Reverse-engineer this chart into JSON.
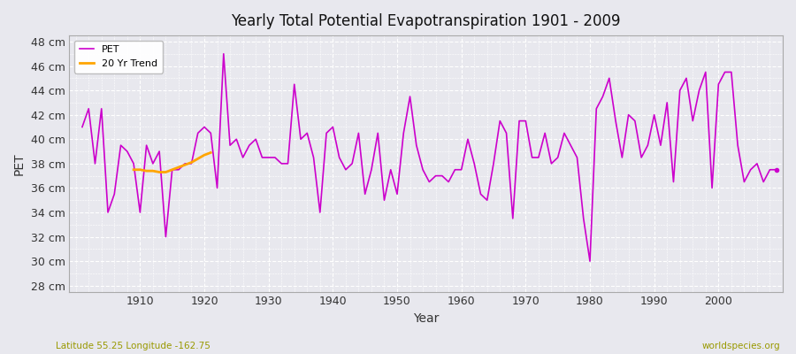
{
  "title": "Yearly Total Potential Evapotranspiration 1901 - 2009",
  "xlabel": "Year",
  "ylabel": "PET",
  "ylim": [
    27.5,
    48.5
  ],
  "ytick_labels": [
    "28 cm",
    "30 cm",
    "32 cm",
    "34 cm",
    "36 cm",
    "38 cm",
    "40 cm",
    "42 cm",
    "44 cm",
    "46 cm",
    "48 cm"
  ],
  "ytick_values": [
    28,
    30,
    32,
    34,
    36,
    38,
    40,
    42,
    44,
    46,
    48
  ],
  "xlim": [
    1899,
    2010
  ],
  "xtick_values": [
    1910,
    1920,
    1930,
    1940,
    1950,
    1960,
    1970,
    1980,
    1990,
    2000
  ],
  "pet_color": "#cc00cc",
  "trend_color": "#ffa500",
  "bg_color": "#e8e8ee",
  "grid_color": "#ffffff",
  "legend_bg": "#ffffff",
  "subtitle_left": "Latitude 55.25 Longitude -162.75",
  "subtitle_right": "worldspecies.org",
  "subtitle_color": "#999900",
  "pet_years": [
    1901,
    1902,
    1903,
    1904,
    1905,
    1906,
    1907,
    1908,
    1909,
    1910,
    1911,
    1912,
    1913,
    1914,
    1915,
    1916,
    1917,
    1918,
    1919,
    1920,
    1921,
    1922,
    1923,
    1924,
    1925,
    1926,
    1927,
    1928,
    1929,
    1930,
    1931,
    1932,
    1933,
    1934,
    1935,
    1936,
    1937,
    1938,
    1939,
    1940,
    1941,
    1942,
    1943,
    1944,
    1945,
    1946,
    1947,
    1948,
    1949,
    1950,
    1951,
    1952,
    1953,
    1954,
    1955,
    1956,
    1957,
    1958,
    1959,
    1960,
    1961,
    1962,
    1963,
    1964,
    1965,
    1966,
    1967,
    1968,
    1969,
    1970,
    1971,
    1972,
    1973,
    1974,
    1975,
    1976,
    1977,
    1978,
    1979,
    1980,
    1981,
    1982,
    1983,
    1984,
    1985,
    1986,
    1987,
    1988,
    1989,
    1990,
    1991,
    1992,
    1993,
    1994,
    1995,
    1996,
    1997,
    1998,
    1999,
    2000,
    2001,
    2002,
    2003,
    2004,
    2005,
    2006,
    2007,
    2008,
    2009
  ],
  "pet_values": [
    41.0,
    42.5,
    38.0,
    42.5,
    34.0,
    35.5,
    39.5,
    39.0,
    38.0,
    34.0,
    39.5,
    38.0,
    39.0,
    32.0,
    37.5,
    37.5,
    38.0,
    38.0,
    40.5,
    41.0,
    40.5,
    36.0,
    47.0,
    39.5,
    40.0,
    38.5,
    39.5,
    40.0,
    38.5,
    38.5,
    38.5,
    38.0,
    38.0,
    44.5,
    40.0,
    40.5,
    38.5,
    34.0,
    40.5,
    41.0,
    38.5,
    37.5,
    38.0,
    40.5,
    35.5,
    37.5,
    40.5,
    35.0,
    37.5,
    35.5,
    40.5,
    43.5,
    39.5,
    37.5,
    36.5,
    37.0,
    37.0,
    36.5,
    37.5,
    37.5,
    40.0,
    38.0,
    35.5,
    35.0,
    38.0,
    41.5,
    40.5,
    33.5,
    41.5,
    41.5,
    38.5,
    38.5,
    40.5,
    38.0,
    38.5,
    40.5,
    39.5,
    38.5,
    33.5,
    30.0,
    42.5,
    43.5,
    45.0,
    41.5,
    38.5,
    42.0,
    41.5,
    38.5,
    39.5,
    42.0,
    39.5,
    43.0,
    36.5,
    44.0,
    45.0,
    41.5,
    44.0,
    45.5,
    36.0,
    44.5,
    45.5,
    45.5,
    39.5,
    36.5,
    37.5,
    38.0,
    36.5,
    37.5,
    37.5
  ],
  "trend_years": [
    1909,
    1910,
    1911,
    1912,
    1913,
    1914,
    1915,
    1916,
    1917,
    1918,
    1919,
    1920,
    1921
  ],
  "trend_values": [
    37.5,
    37.5,
    37.4,
    37.4,
    37.3,
    37.3,
    37.5,
    37.7,
    37.9,
    38.1,
    38.4,
    38.7,
    38.9
  ]
}
